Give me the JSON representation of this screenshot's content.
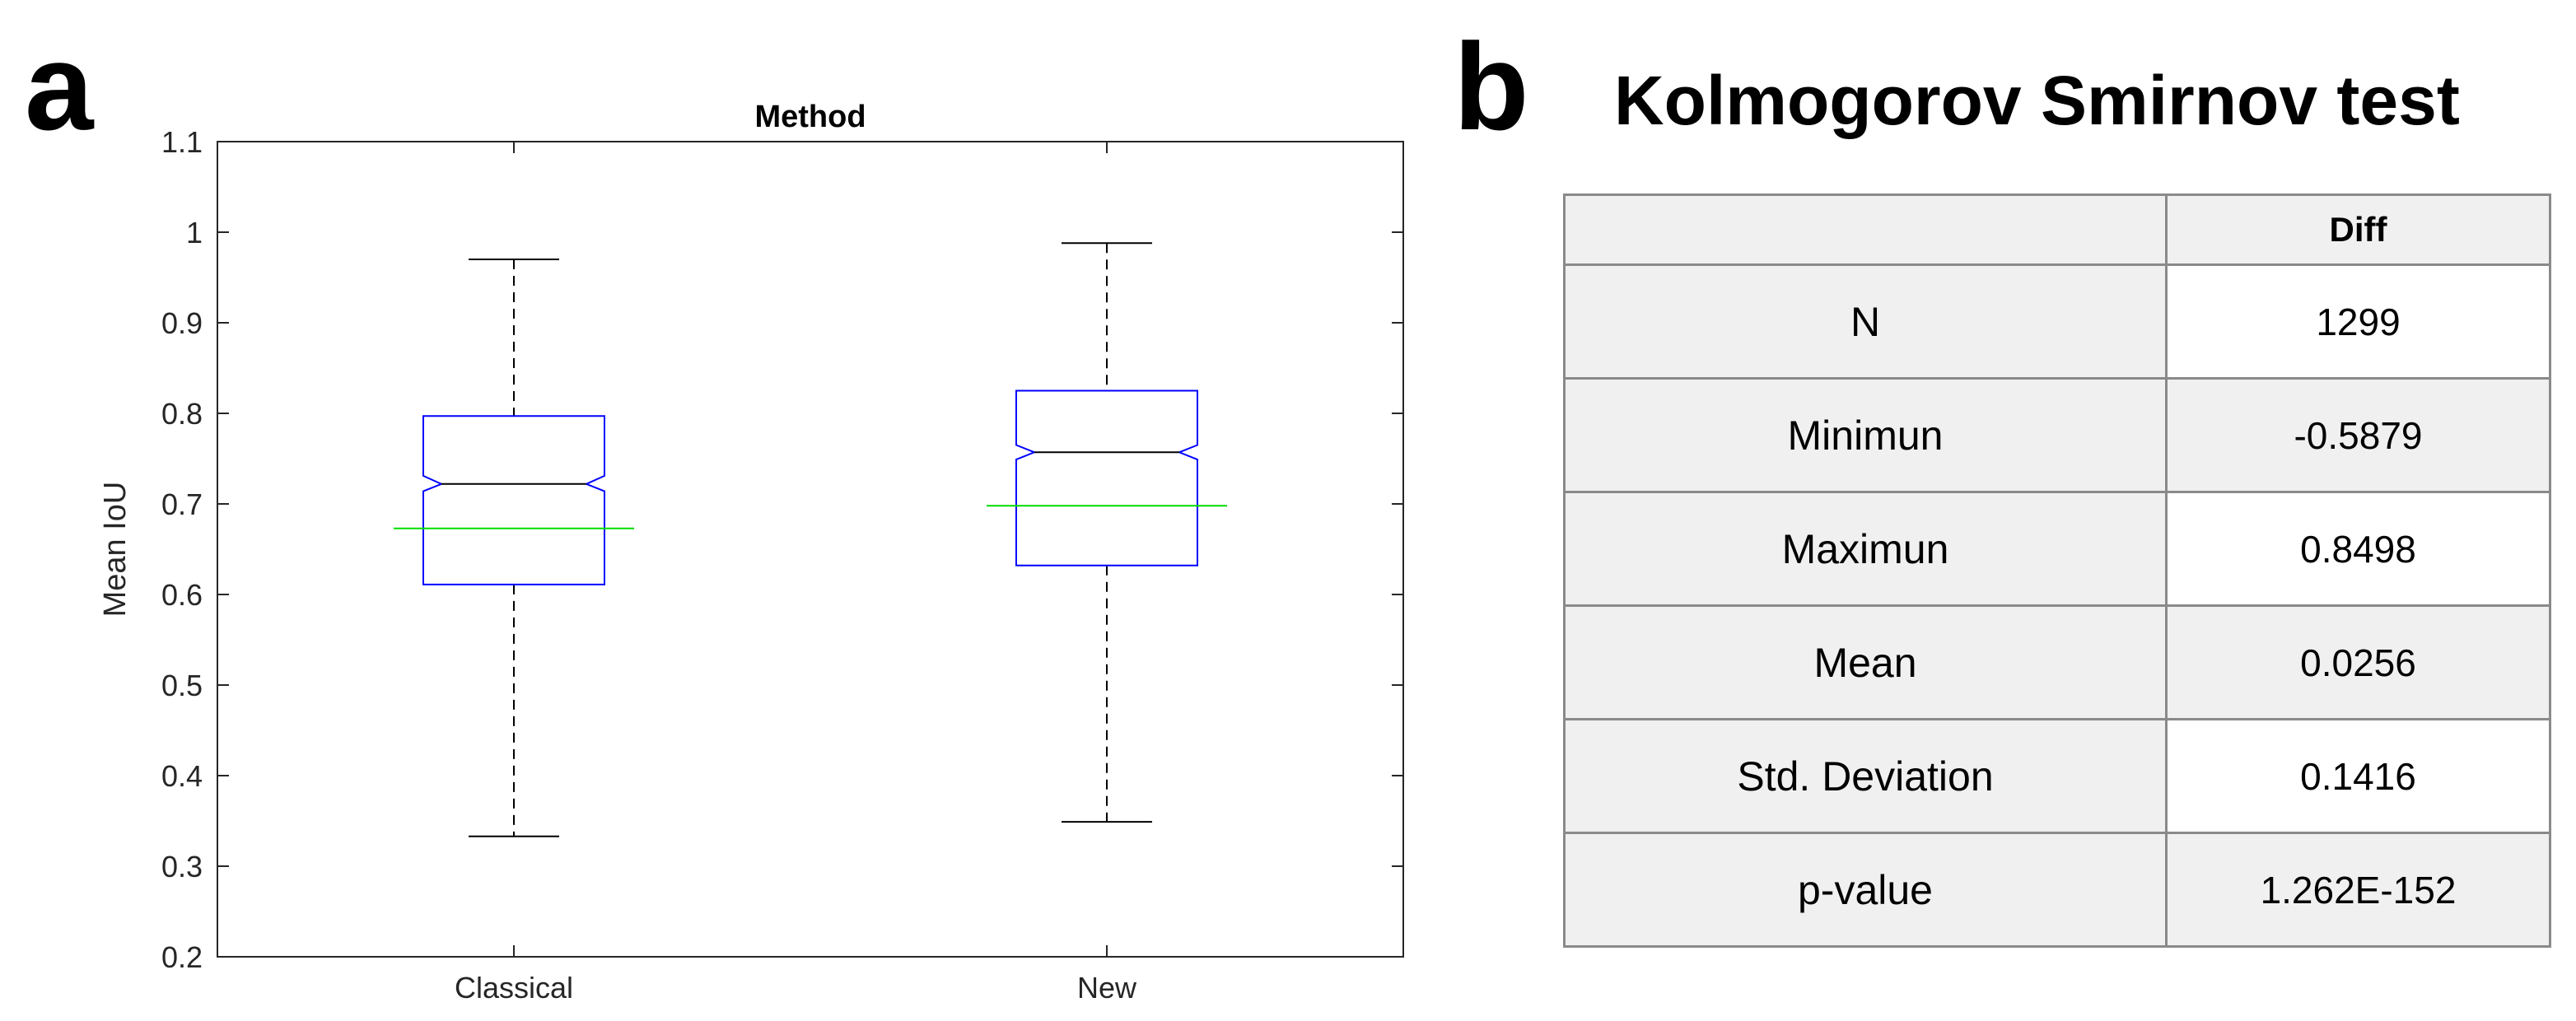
{
  "panel_a": {
    "letter": "a"
  },
  "panel_b": {
    "letter": "b",
    "title": "Kolmogorov Smirnov test"
  },
  "chart_data": {
    "type": "boxplot",
    "title": "Method",
    "xlabel": "",
    "ylabel": "Mean IoU",
    "ylim": [
      0.2,
      1.1
    ],
    "yticks": [
      0.2,
      0.3,
      0.4,
      0.5,
      0.6,
      0.7,
      0.8,
      0.9,
      1,
      1.1
    ],
    "ytick_labels": [
      "0.2",
      "0.3",
      "0.4",
      "0.5",
      "0.6",
      "0.7",
      "0.8",
      "0.9",
      "1",
      "1.1"
    ],
    "categories": [
      "Classical",
      "New"
    ],
    "notched": true,
    "grid": false,
    "colors": {
      "box": "#0000ff",
      "median": "#000000",
      "mean_line": "#00dd00",
      "whisker": "#000000"
    },
    "boxes": [
      {
        "category": "Classical",
        "whisker_low": 0.333,
        "q1": 0.611,
        "median": 0.722,
        "q3": 0.797,
        "whisker_high": 0.97,
        "notch_low": 0.714,
        "notch_high": 0.731,
        "mean": 0.673
      },
      {
        "category": "New",
        "whisker_low": 0.349,
        "q1": 0.632,
        "median": 0.757,
        "q3": 0.825,
        "whisker_high": 0.988,
        "notch_low": 0.749,
        "notch_high": 0.765,
        "mean": 0.698
      }
    ]
  },
  "stats_table": {
    "header": [
      "",
      "Diff"
    ],
    "rows": [
      {
        "label": "N",
        "value": "1299"
      },
      {
        "label": "Minimun",
        "value": "-0.5879"
      },
      {
        "label": "Maximun",
        "value": "0.8498"
      },
      {
        "label": "Mean",
        "value": "0.0256"
      },
      {
        "label": "Std. Deviation",
        "value": "0.1416"
      },
      {
        "label": "p-value",
        "value": "1.262E-152"
      }
    ]
  }
}
